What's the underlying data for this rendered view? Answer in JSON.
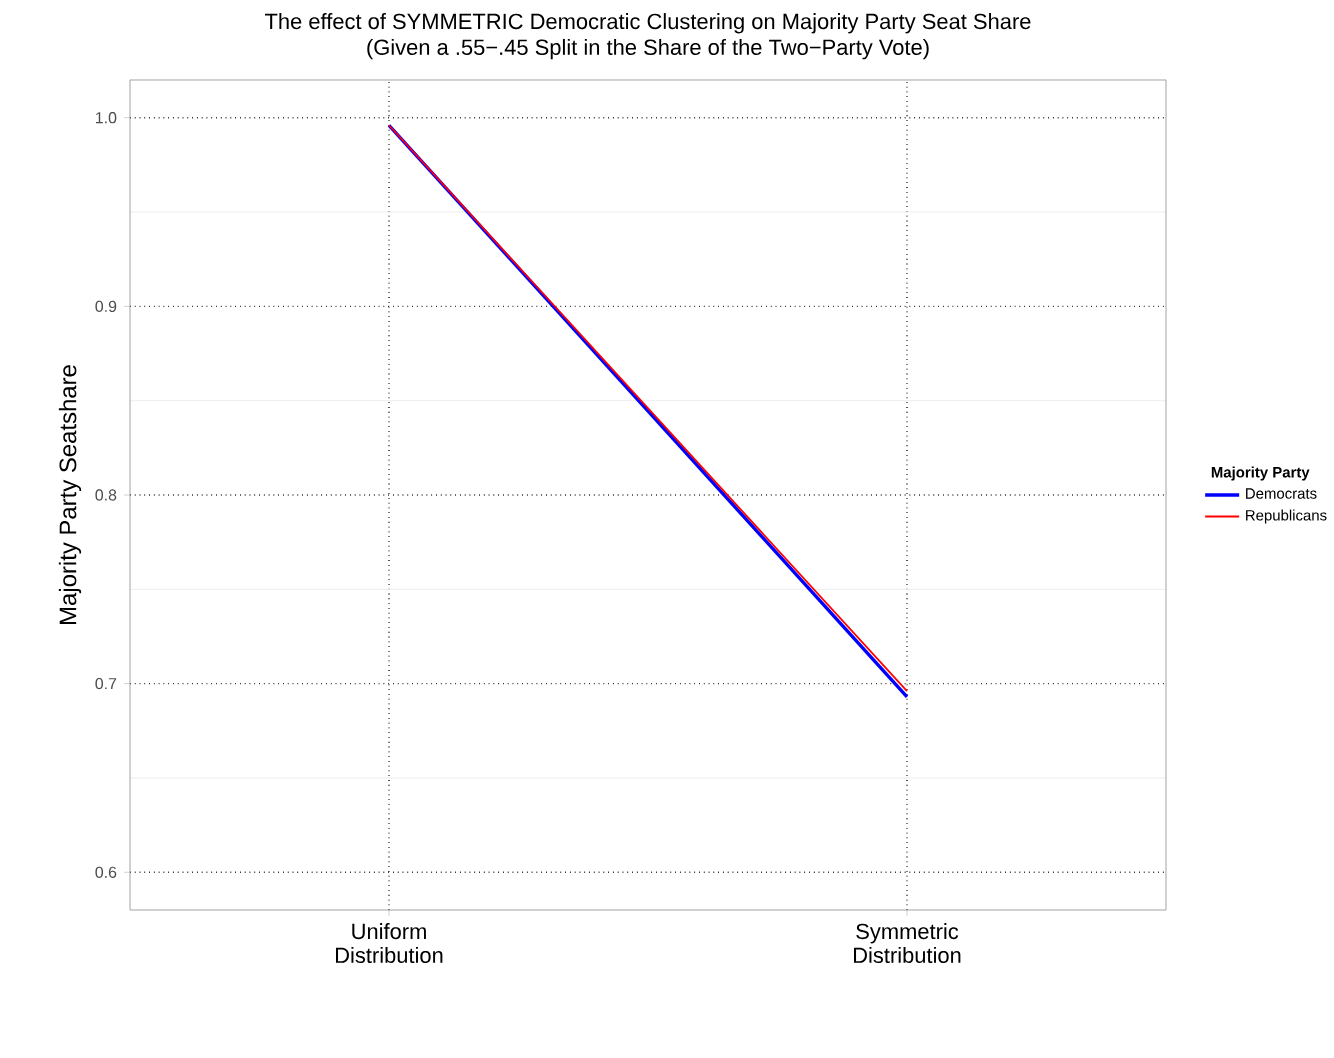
{
  "chart_data": {
    "type": "line",
    "title": "The effect of SYMMETRIC Democratic Clustering on Majority Party Seat Share",
    "subtitle": "(Given a .55−.45 Split in the Share of the Two−Party Vote)",
    "ylabel": "Majority Party Seatshare",
    "legend_title": "Majority Party",
    "categories": [
      "Uniform Distribution",
      "Symmetric Distribution"
    ],
    "series": [
      {
        "name": "Democrats",
        "color": "#0000ff",
        "values": [
          0.996,
          0.693
        ]
      },
      {
        "name": "Republicans",
        "color": "#ff0000",
        "values": [
          0.996,
          0.696
        ]
      }
    ],
    "ylim": [
      0.58,
      1.02
    ],
    "yticks": [
      0.6,
      0.7,
      0.8,
      0.9,
      {
        "value": 1.0,
        "label": "1.0"
      }
    ],
    "grid": true,
    "legend": "right",
    "marker": "none",
    "line_style": "solid"
  }
}
